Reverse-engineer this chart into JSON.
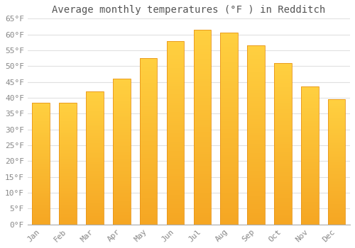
{
  "title": "Average monthly temperatures (°F ) in Redditch",
  "months": [
    "Jan",
    "Feb",
    "Mar",
    "Apr",
    "May",
    "Jun",
    "Jul",
    "Aug",
    "Sep",
    "Oct",
    "Nov",
    "Dec"
  ],
  "values": [
    38.5,
    38.5,
    42.0,
    46.0,
    52.5,
    58.0,
    61.5,
    60.5,
    56.5,
    51.0,
    43.5,
    39.5
  ],
  "bar_color_bottom": "#F5A623",
  "bar_color_top": "#FFD040",
  "bar_edge_color": "#E8951A",
  "background_color": "#FFFFFF",
  "grid_color": "#E0E0E0",
  "text_color": "#888888",
  "title_color": "#555555",
  "ylim": [
    0,
    65
  ],
  "yticks": [
    0,
    5,
    10,
    15,
    20,
    25,
    30,
    35,
    40,
    45,
    50,
    55,
    60,
    65
  ],
  "ytick_labels": [
    "0°F",
    "5°F",
    "10°F",
    "15°F",
    "20°F",
    "25°F",
    "30°F",
    "35°F",
    "40°F",
    "45°F",
    "50°F",
    "55°F",
    "60°F",
    "65°F"
  ],
  "title_fontsize": 10,
  "tick_fontsize": 8,
  "font_family": "monospace",
  "bar_width": 0.65
}
